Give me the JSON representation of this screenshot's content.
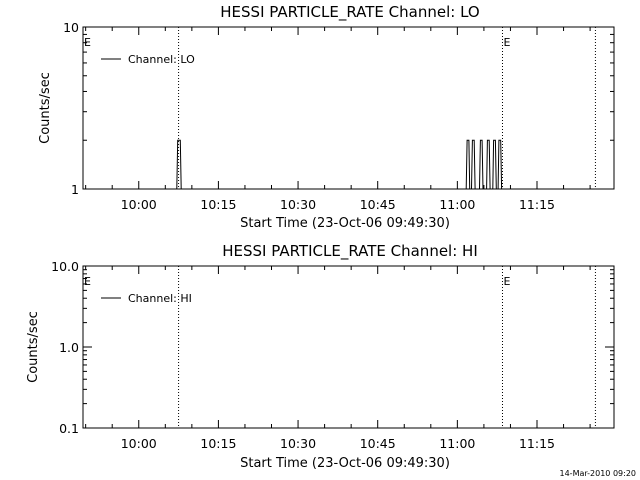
{
  "colors": {
    "background": "#ffffff",
    "foreground": "#000000"
  },
  "footer": {
    "timestamp": "14-Mar-2010 09:20"
  },
  "chart_data": [
    {
      "type": "line",
      "title": "HESSI PARTICLE_RATE Channel: LO",
      "xlabel": "Start Time (23-Oct-06 09:49:30)",
      "ylabel": "Counts/sec",
      "y_scale": "log",
      "ylim": [
        1,
        10
      ],
      "xlim": [
        "09:49:30",
        "11:29:30"
      ],
      "x_tick_labels": [
        "10:00",
        "10:15",
        "10:30",
        "10:45",
        "11:00",
        "11:15"
      ],
      "y_tick_labels": [
        {
          "value": 1,
          "label": "1"
        },
        {
          "value": 10,
          "label": "10"
        }
      ],
      "legend": {
        "entries": [
          "Channel: LO"
        ],
        "position": "top-left"
      },
      "flag_markers": [
        {
          "time": "09:49:30",
          "label": "E"
        },
        {
          "time": "10:07:30",
          "label": ""
        },
        {
          "time": "11:08:30",
          "label": "E"
        },
        {
          "time": "11:26:00",
          "label": ""
        }
      ],
      "series": [
        {
          "name": "Channel: LO",
          "points": [
            [
              "10:07:10",
              1
            ],
            [
              "10:07:20",
              2
            ],
            [
              "10:07:50",
              2
            ],
            [
              "10:08:00",
              1
            ],
            [
              "11:01:40",
              1
            ],
            [
              "11:01:50",
              2
            ],
            [
              "11:02:10",
              2
            ],
            [
              "11:02:20",
              1
            ],
            [
              "11:02:40",
              1
            ],
            [
              "11:02:50",
              2
            ],
            [
              "11:03:10",
              2
            ],
            [
              "11:03:20",
              1
            ],
            [
              "11:04:10",
              1
            ],
            [
              "11:04:20",
              2
            ],
            [
              "11:04:40",
              2
            ],
            [
              "11:04:50",
              1
            ],
            [
              "11:05:30",
              1
            ],
            [
              "11:05:40",
              2
            ],
            [
              "11:06:00",
              2
            ],
            [
              "11:06:10",
              1
            ],
            [
              "11:06:40",
              1
            ],
            [
              "11:06:50",
              2
            ],
            [
              "11:07:10",
              2
            ],
            [
              "11:07:20",
              1
            ],
            [
              "11:07:40",
              1
            ],
            [
              "11:07:50",
              2
            ],
            [
              "11:08:10",
              2
            ],
            [
              "11:08:20",
              1
            ]
          ]
        }
      ],
      "grid": false
    },
    {
      "type": "line",
      "title": "HESSI PARTICLE_RATE Channel: HI",
      "xlabel": "Start Time (23-Oct-06 09:49:30)",
      "ylabel": "Counts/sec",
      "y_scale": "log",
      "ylim": [
        0.1,
        10
      ],
      "xlim": [
        "09:49:30",
        "11:29:30"
      ],
      "x_tick_labels": [
        "10:00",
        "10:15",
        "10:30",
        "10:45",
        "11:00",
        "11:15"
      ],
      "y_tick_labels": [
        {
          "value": 0.1,
          "label": "0.1"
        },
        {
          "value": 1,
          "label": "1.0"
        },
        {
          "value": 10,
          "label": "10.0"
        }
      ],
      "legend": {
        "entries": [
          "Channel: HI"
        ],
        "position": "top-left"
      },
      "flag_markers": [
        {
          "time": "09:49:30",
          "label": "E"
        },
        {
          "time": "10:07:30",
          "label": ""
        },
        {
          "time": "11:08:30",
          "label": "E"
        },
        {
          "time": "11:26:00",
          "label": ""
        }
      ],
      "series": [
        {
          "name": "Channel: HI",
          "points": []
        }
      ],
      "grid": false
    }
  ]
}
